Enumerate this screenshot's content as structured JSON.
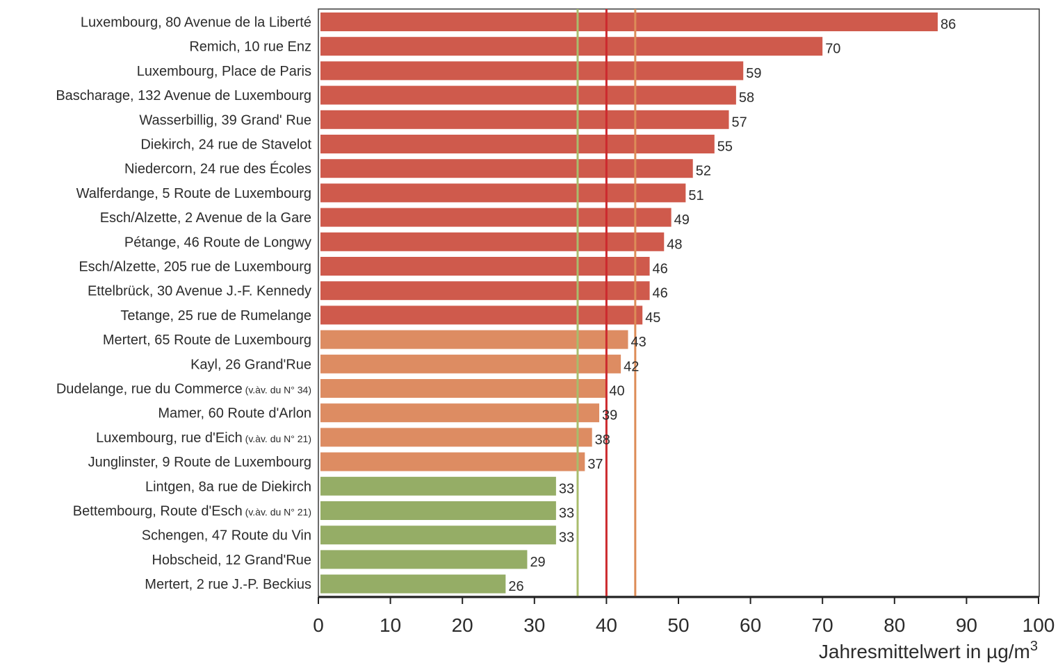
{
  "chart_data": {
    "type": "bar",
    "orientation": "horizontal",
    "categories": [
      {
        "name": "Luxembourg, 80 Avenue de la Liberté",
        "note": ""
      },
      {
        "name": "Remich, 10 rue Enz",
        "note": ""
      },
      {
        "name": "Luxembourg, Place de Paris",
        "note": ""
      },
      {
        "name": "Bascharage, 132 Avenue de Luxembourg",
        "note": ""
      },
      {
        "name": "Wasserbillig, 39 Grand' Rue",
        "note": ""
      },
      {
        "name": "Diekirch, 24 rue de Stavelot",
        "note": ""
      },
      {
        "name": "Niedercorn, 24 rue des Écoles",
        "note": ""
      },
      {
        "name": "Walferdange, 5 Route de Luxembourg",
        "note": ""
      },
      {
        "name": "Esch/Alzette, 2 Avenue de la Gare",
        "note": ""
      },
      {
        "name": "Pétange, 46 Route de Longwy",
        "note": ""
      },
      {
        "name": "Esch/Alzette, 205 rue de Luxembourg",
        "note": ""
      },
      {
        "name": "Ettelbrück, 30 Avenue J.-F. Kennedy",
        "note": ""
      },
      {
        "name": "Tetange, 25 rue de Rumelange",
        "note": ""
      },
      {
        "name": "Mertert, 65 Route de Luxembourg",
        "note": ""
      },
      {
        "name": "Kayl, 26 Grand'Rue",
        "note": ""
      },
      {
        "name": "Dudelange, rue du Commerce",
        "note": "(v.àv. du N° 34)"
      },
      {
        "name": "Mamer, 60 Route d'Arlon",
        "note": ""
      },
      {
        "name": "Luxembourg, rue d'Eich",
        "note": "(v.àv. du N° 21)"
      },
      {
        "name": "Junglinster, 9 Route de Luxembourg",
        "note": ""
      },
      {
        "name": "Lintgen, 8a rue de Diekirch",
        "note": ""
      },
      {
        "name": "Bettembourg, Route d'Esch",
        "note": "(v.àv. du N° 21)"
      },
      {
        "name": "Schengen, 47 Route du Vin",
        "note": ""
      },
      {
        "name": "Hobscheid, 12 Grand'Rue",
        "note": ""
      },
      {
        "name": "Mertert, 2 rue J.-P. Beckius",
        "note": ""
      }
    ],
    "values": [
      86,
      70,
      59,
      58,
      57,
      55,
      52,
      51,
      49,
      48,
      46,
      46,
      45,
      43,
      42,
      40,
      39,
      38,
      37,
      33,
      33,
      33,
      29,
      26
    ],
    "value_labels": [
      "86",
      "70",
      "59",
      "58",
      "57",
      "55",
      "52",
      "51",
      "49",
      "48",
      "46",
      "46",
      "45",
      "43",
      "42",
      "40",
      "39",
      "38",
      "37",
      "33",
      "33",
      "33",
      "29",
      "26"
    ],
    "bar_color_groups": [
      {
        "from_index": 0,
        "to_index": 12,
        "color": "#cf5a4c"
      },
      {
        "from_index": 13,
        "to_index": 18,
        "color": "#dd8c62"
      },
      {
        "from_index": 19,
        "to_index": 23,
        "color": "#95ad66"
      }
    ],
    "reference_lines": [
      {
        "value": 36,
        "color": "#a9bc6c"
      },
      {
        "value": 40,
        "color": "#cc2a2e"
      },
      {
        "value": 44,
        "color": "#dd8c58"
      }
    ],
    "xlim": [
      0,
      100
    ],
    "x_ticks": [
      0,
      10,
      20,
      30,
      40,
      50,
      60,
      70,
      80,
      90,
      100
    ],
    "xlabel": "Jahresmittelwert in µg/m",
    "xlabel_superscript": "3",
    "title": "",
    "ylabel": "",
    "grid": false,
    "legend": "none",
    "colors": {
      "text": "#2b2b2b",
      "axis": "#222222",
      "frame": "#3a3a3a"
    }
  }
}
